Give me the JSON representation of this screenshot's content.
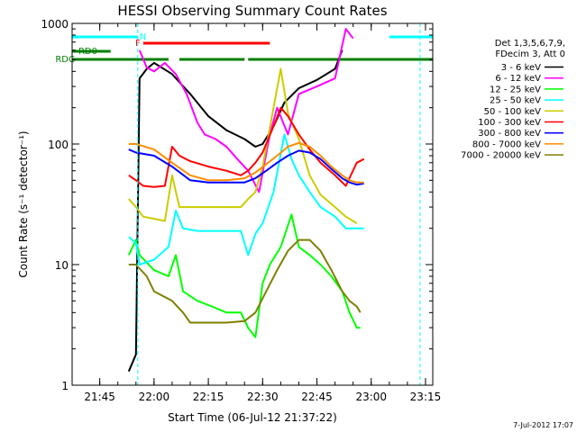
{
  "chart_data": {
    "type": "line",
    "title": "HESSI Observing Summary Count Rates",
    "xlabel": "Start Time (06-Jul-12 21:37:22)",
    "ylabel": "Count Rate (s⁻¹ detector⁻¹)",
    "yscale": "log",
    "ylim": [
      1,
      1000
    ],
    "xlim": [
      "21:37:22",
      "23:17:00"
    ],
    "x_tick_labels": [
      "21:45",
      "22:00",
      "22:15",
      "22:30",
      "22:45",
      "23:00",
      "23:15"
    ],
    "y_tick_labels": [
      "1",
      "10",
      "100",
      "1000"
    ],
    "grid": false,
    "legend_position": "right",
    "legend_header": [
      "Det 1,3,5,6,7,9,",
      "FDecim 3, Att 0"
    ],
    "timestamp": "7-Jul-2012 17:07",
    "flag_bars": [
      {
        "label": "N",
        "color": "#00ffff",
        "segments": [
          [
            "21:37:22",
            "21:55:30"
          ],
          [
            "23:05:00",
            "23:17:00"
          ]
        ]
      },
      {
        "label": "F",
        "color": "#ff0000",
        "segments": [
          [
            "21:57:00",
            "22:32:00"
          ]
        ]
      },
      {
        "label": "RD0",
        "color": "#007f00",
        "segments": [
          [
            "21:37:22",
            "21:48:00"
          ]
        ]
      },
      {
        "label": "RDC",
        "color": "#007f00",
        "segments": [
          [
            "21:37:22",
            "22:04:00"
          ],
          [
            "22:07:00",
            "22:25:00"
          ],
          [
            "22:26:00",
            "23:17:00"
          ]
        ]
      }
    ],
    "vertical_markers": [
      "21:55:30",
      "23:13:30"
    ],
    "series": [
      {
        "name": "3 - 6 keV",
        "color": "#000000",
        "x": [
          "21:53",
          "21:55",
          "21:56",
          "21:58",
          "22:00",
          "22:05",
          "22:10",
          "22:15",
          "22:20",
          "22:25",
          "22:28",
          "22:30",
          "22:33",
          "22:36",
          "22:40",
          "22:45",
          "22:50",
          "22:52"
        ],
        "y": [
          1.3,
          1.8,
          350,
          420,
          470,
          380,
          260,
          170,
          130,
          110,
          95,
          100,
          140,
          220,
          290,
          340,
          420,
          600
        ]
      },
      {
        "name": "6 - 12 keV",
        "color": "#ff00ff",
        "x": [
          "21:56",
          "21:58",
          "22:00",
          "22:03",
          "22:06",
          "22:09",
          "22:12",
          "22:14",
          "22:17",
          "22:20",
          "22:23",
          "22:26",
          "22:29",
          "22:32",
          "22:34",
          "22:37",
          "22:40",
          "22:45",
          "22:50",
          "22:53",
          "22:55"
        ],
        "y": [
          600,
          430,
          400,
          470,
          380,
          260,
          150,
          120,
          110,
          95,
          75,
          60,
          40,
          120,
          200,
          120,
          260,
          300,
          350,
          900,
          750
        ]
      },
      {
        "name": "12 - 25 keV",
        "color": "#00ff00",
        "x": [
          "21:53",
          "21:55",
          "21:56",
          "22:00",
          "22:04",
          "22:06",
          "22:08",
          "22:12",
          "22:16",
          "22:20",
          "22:24",
          "22:26",
          "22:28",
          "22:30",
          "22:32",
          "22:35",
          "22:38",
          "22:40",
          "22:43",
          "22:46",
          "22:49",
          "22:52",
          "22:54",
          "22:56",
          "22:57"
        ],
        "y": [
          12,
          16,
          12,
          9,
          8,
          12,
          6,
          5,
          4.5,
          4,
          4,
          3,
          2.5,
          7,
          10,
          14,
          26,
          14,
          12,
          10,
          8,
          6,
          4,
          3,
          3
        ]
      },
      {
        "name": "25 - 50 keV",
        "color": "#00ffff",
        "x": [
          "21:53",
          "21:55",
          "21:56",
          "22:00",
          "22:04",
          "22:06",
          "22:08",
          "22:12",
          "22:16",
          "22:20",
          "22:24",
          "22:26",
          "22:28",
          "22:30",
          "22:33",
          "22:36",
          "22:38",
          "22:40",
          "22:43",
          "22:46",
          "22:50",
          "22:53",
          "22:56",
          "22:58"
        ],
        "y": [
          17,
          15,
          10,
          11,
          14,
          28,
          20,
          19,
          19,
          19,
          19,
          12,
          18,
          22,
          40,
          120,
          75,
          55,
          40,
          30,
          25,
          20,
          20,
          20
        ]
      },
      {
        "name": "50 - 100 keV",
        "color": "#cccc00",
        "x": [
          "21:53",
          "21:55",
          "21:57",
          "22:00",
          "22:03",
          "22:05",
          "22:07",
          "22:10",
          "22:15",
          "22:20",
          "22:24",
          "22:26",
          "22:28",
          "22:30",
          "22:33",
          "22:35",
          "22:37",
          "22:40",
          "22:43",
          "22:46",
          "22:50",
          "22:53",
          "22:56"
        ],
        "y": [
          35,
          30,
          25,
          24,
          23,
          55,
          30,
          30,
          30,
          30,
          30,
          35,
          40,
          65,
          200,
          420,
          180,
          110,
          55,
          38,
          30,
          25,
          22
        ]
      },
      {
        "name": "100 - 300 keV",
        "color": "#ff0000",
        "x": [
          "21:53",
          "21:55",
          "21:57",
          "22:00",
          "22:03",
          "22:05",
          "22:07",
          "22:10",
          "22:15",
          "22:20",
          "22:24",
          "22:26",
          "22:28",
          "22:30",
          "22:33",
          "22:35",
          "22:37",
          "22:40",
          "22:43",
          "22:46",
          "22:50",
          "22:53",
          "22:56",
          "22:58"
        ],
        "y": [
          55,
          50,
          45,
          44,
          45,
          95,
          80,
          72,
          65,
          60,
          55,
          60,
          70,
          85,
          140,
          200,
          170,
          120,
          90,
          70,
          55,
          45,
          70,
          75
        ]
      },
      {
        "name": "300 - 800 keV",
        "color": "#0000ff",
        "x": [
          "21:53",
          "21:55",
          "22:00",
          "22:05",
          "22:10",
          "22:15",
          "22:20",
          "22:25",
          "22:28",
          "22:31",
          "22:34",
          "22:37",
          "22:40",
          "22:43",
          "22:46",
          "22:49",
          "22:52",
          "22:54",
          "22:56",
          "22:58"
        ],
        "y": [
          90,
          85,
          80,
          65,
          50,
          48,
          48,
          48,
          52,
          60,
          70,
          80,
          88,
          85,
          75,
          62,
          52,
          48,
          46,
          47
        ]
      },
      {
        "name": "800 - 7000 keV",
        "color": "#ff8c00",
        "x": [
          "21:53",
          "21:55",
          "22:00",
          "22:05",
          "22:10",
          "22:15",
          "22:20",
          "22:25",
          "22:28",
          "22:31",
          "22:34",
          "22:37",
          "22:40",
          "22:43",
          "22:46",
          "22:49",
          "22:52",
          "22:54",
          "22:56",
          "22:58"
        ],
        "y": [
          100,
          100,
          90,
          70,
          55,
          50,
          50,
          52,
          58,
          68,
          80,
          95,
          102,
          95,
          80,
          65,
          55,
          50,
          48,
          48
        ]
      },
      {
        "name": "7000 - 20000 keV",
        "color": "#7f7f00",
        "x": [
          "21:53",
          "21:55",
          "21:58",
          "22:00",
          "22:05",
          "22:08",
          "22:10",
          "22:15",
          "22:20",
          "22:25",
          "22:28",
          "22:31",
          "22:34",
          "22:37",
          "22:40",
          "22:43",
          "22:46",
          "22:49",
          "22:52",
          "22:54",
          "22:56",
          "22:57"
        ],
        "y": [
          10,
          10,
          8,
          6,
          5,
          4,
          3.3,
          3.3,
          3.3,
          3.4,
          4,
          6,
          9,
          13,
          16,
          16,
          13,
          9,
          6,
          5,
          4.5,
          4
        ]
      }
    ]
  }
}
